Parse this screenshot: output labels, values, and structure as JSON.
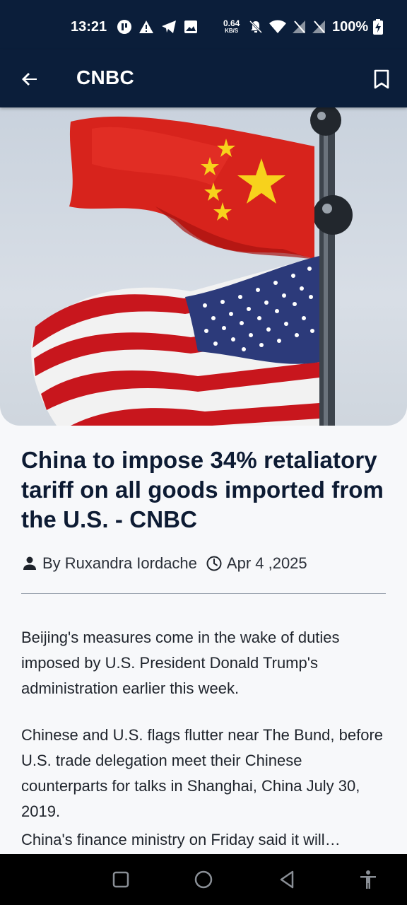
{
  "status_bar": {
    "time": "13:21",
    "net_speed_value": "0.64",
    "net_speed_unit": "KB/S",
    "battery": "100%",
    "icons": [
      "sync-icon",
      "warning-icon",
      "telegram-icon",
      "image-icon",
      "mute-icon",
      "wifi-icon",
      "signal-icon",
      "signal-icon",
      "battery-charging-icon"
    ]
  },
  "app_bar": {
    "title": "CNBC",
    "back_icon": "arrow-back-icon",
    "bookmark_icon": "bookmark-icon"
  },
  "article": {
    "headline": "China to impose 34% retaliatory tariff on all goods imported from the U.S. - CNBC",
    "author": "By Ruxandra Iordache",
    "date": "Apr 4 ,2025",
    "paragraphs": [
      "Beijing's measures come in the wake of duties imposed by U.S. President Donald Trump's administration earlier this week.",
      "Chinese and U.S. flags flutter near The Bund, before U.S. trade delegation meet their Chinese counterparts for talks in Shanghai, China July 30, 2019.",
      "China's finance ministry on Friday said it will…"
    ]
  },
  "nav_bar": {
    "buttons": [
      "recents-icon",
      "home-icon",
      "back-icon",
      "accessibility-icon"
    ]
  },
  "colors": {
    "header_bg": "#0b1e3a",
    "page_bg": "#f7f8fa",
    "headline": "#0d1b33"
  }
}
